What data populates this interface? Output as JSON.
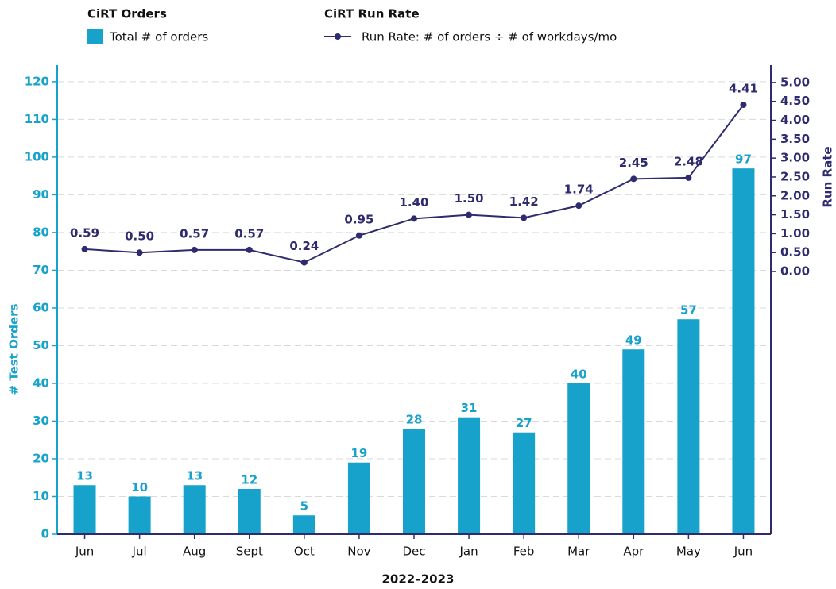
{
  "chart_data": {
    "type": "bar_line",
    "categories": [
      "Jun",
      "Jul",
      "Aug",
      "Sept",
      "Oct",
      "Nov",
      "Dec",
      "Jan",
      "Feb",
      "Mar",
      "Apr",
      "May",
      "Jun"
    ],
    "series": [
      {
        "name": "Total # of orders",
        "group": "CiRT Orders",
        "type": "bar",
        "color": "#17a2cb",
        "values": [
          13,
          10,
          13,
          12,
          5,
          19,
          28,
          31,
          27,
          40,
          49,
          57,
          97
        ]
      },
      {
        "name": "Run Rate: # of orders ÷ # of workdays/mo",
        "group": "CiRT Run Rate",
        "type": "line",
        "axis": "y2",
        "color": "#2e2b6e",
        "values": [
          0.59,
          0.5,
          0.57,
          0.57,
          0.24,
          0.95,
          1.4,
          1.5,
          1.42,
          1.74,
          2.45,
          2.48,
          4.41
        ],
        "value_labels": [
          "0.59",
          "0.50",
          "0.57",
          "0.57",
          "0.24",
          "0.95",
          "1.40",
          "1.50",
          "1.42",
          "1.74",
          "2.45",
          "2.48",
          "4.41"
        ]
      }
    ],
    "xlabel": "2022–2023",
    "ylabel": "# Test Orders",
    "y2label": "Run Rate",
    "ylim": [
      0,
      124.4
    ],
    "yticks": [
      0,
      10,
      20,
      30,
      40,
      50,
      60,
      70,
      80,
      90,
      100,
      110,
      120
    ],
    "y2lim": [
      -6.95,
      5.46
    ],
    "y2ticks": [
      {
        "value": 0,
        "label": "0.00"
      },
      {
        "value": 0.5,
        "label": "0.50"
      },
      {
        "value": 1,
        "label": "1.00"
      },
      {
        "value": 1.5,
        "label": "1.50"
      },
      {
        "value": 2,
        "label": "2.00"
      },
      {
        "value": 2.5,
        "label": "2.50"
      },
      {
        "value": 3,
        "label": "3.00"
      },
      {
        "value": 3.5,
        "label": "3.50"
      },
      {
        "value": 4,
        "label": "4.00"
      },
      {
        "value": 4.5,
        "label": "4.50"
      },
      {
        "value": 5,
        "label": "5.00"
      }
    ],
    "grid": true
  }
}
